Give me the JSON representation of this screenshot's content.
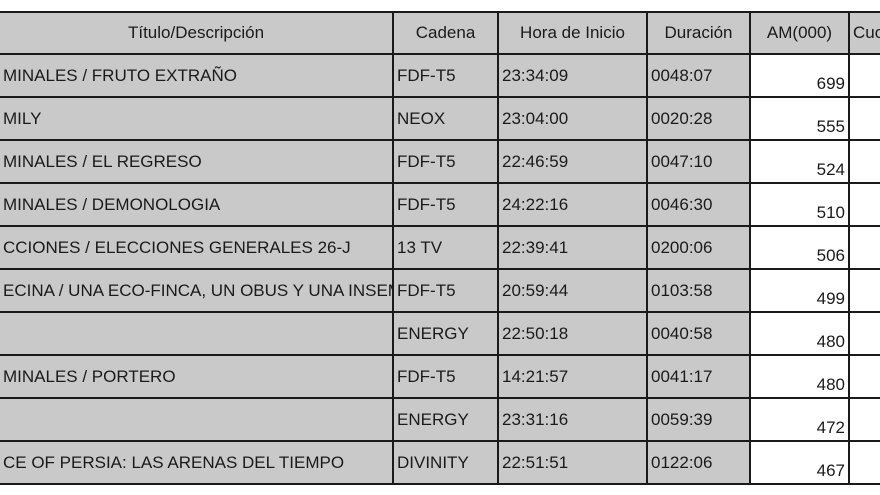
{
  "headers": [
    "Título/Descripción",
    "Cadena",
    "Hora de Inicio",
    "Duración",
    "AM(000)",
    "Cuo"
  ],
  "rows": [
    {
      "title": "MINALES / FRUTO EXTRAÑO",
      "cadena": "FDF-T5",
      "hora": "23:34:09",
      "duracion": "0048:07",
      "am": "699"
    },
    {
      "title": "MILY",
      "cadena": "NEOX",
      "hora": "23:04:00",
      "duracion": "0020:28",
      "am": "555"
    },
    {
      "title": "MINALES / EL REGRESO",
      "cadena": "FDF-T5",
      "hora": "22:46:59",
      "duracion": "0047:10",
      "am": "524"
    },
    {
      "title": "MINALES / DEMONOLOGIA",
      "cadena": "FDF-T5",
      "hora": "24:22:16",
      "duracion": "0046:30",
      "am": "510"
    },
    {
      "title": "CCIONES / ELECCIONES GENERALES 26-J",
      "cadena": "13 TV",
      "hora": "22:39:41",
      "duracion": "0200:06",
      "am": "506"
    },
    {
      "title": "ECINA / UNA ECO-FINCA, UN OBUS Y UNA INSEMI",
      "cadena": "FDF-T5",
      "hora": "20:59:44",
      "duracion": "0103:58",
      "am": "499"
    },
    {
      "title": "",
      "cadena": "ENERGY",
      "hora": "22:50:18",
      "duracion": "0040:58",
      "am": "480"
    },
    {
      "title": "MINALES / PORTERO",
      "cadena": "FDF-T5",
      "hora": "14:21:57",
      "duracion": "0041:17",
      "am": "480"
    },
    {
      "title": "",
      "cadena": "ENERGY",
      "hora": "23:31:16",
      "duracion": "0059:39",
      "am": "472"
    },
    {
      "title": "CE OF PERSIA: LAS ARENAS DEL TIEMPO",
      "cadena": "DIVINITY",
      "hora": "22:51:51",
      "duracion": "0122:06",
      "am": "467"
    }
  ]
}
